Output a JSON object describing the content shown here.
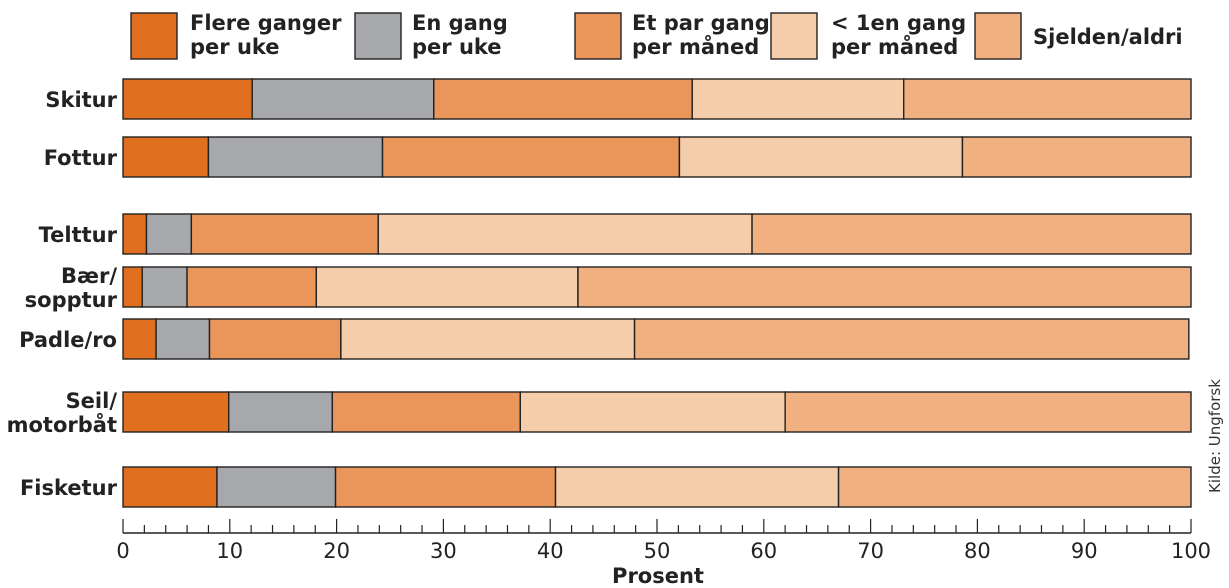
{
  "chart_data": {
    "type": "bar",
    "orientation": "horizontal",
    "stacked": true,
    "categories": [
      [
        "Skitur"
      ],
      [
        "Fottur"
      ],
      [
        "Telttur"
      ],
      [
        "Bær/",
        "sopptur"
      ],
      [
        "Padle/ro"
      ],
      [
        "Seil/",
        "motorbåt"
      ],
      [
        "Fisketur"
      ]
    ],
    "series": [
      {
        "name": [
          "Flere ganger",
          "per uke"
        ],
        "color": "#e07020",
        "values": [
          12.1,
          8.0,
          2.2,
          1.8,
          3.1,
          9.9,
          8.8
        ]
      },
      {
        "name": [
          "En gang",
          "per uke"
        ],
        "color": "#a7a8ac",
        "values": [
          17.0,
          16.3,
          4.2,
          4.2,
          5.0,
          9.7,
          11.1
        ]
      },
      {
        "name": [
          "Et par ganger",
          "per måned"
        ],
        "color": "#ea965a",
        "values": [
          24.2,
          27.8,
          17.5,
          12.1,
          12.3,
          17.6,
          20.6
        ]
      },
      {
        "name": [
          "< 1en gang",
          "per måned"
        ],
        "color": "#f6cdaa",
        "values": [
          19.8,
          26.5,
          35.0,
          24.5,
          27.5,
          24.8,
          26.5
        ]
      },
      {
        "name": [
          "Sjelden/aldri"
        ],
        "color": "#f0b080",
        "values": [
          26.9,
          21.4,
          41.1,
          57.4,
          51.9,
          38.0,
          33.0
        ]
      }
    ],
    "xlabel": "Prosent",
    "xlim": [
      0,
      100
    ],
    "xticks": [
      "0",
      "10",
      "20",
      "30",
      "40",
      "50",
      "60",
      "70",
      "80",
      "90",
      "100"
    ],
    "legend_position": "top",
    "grid": false,
    "source": "Kilde: Ungforsk"
  }
}
